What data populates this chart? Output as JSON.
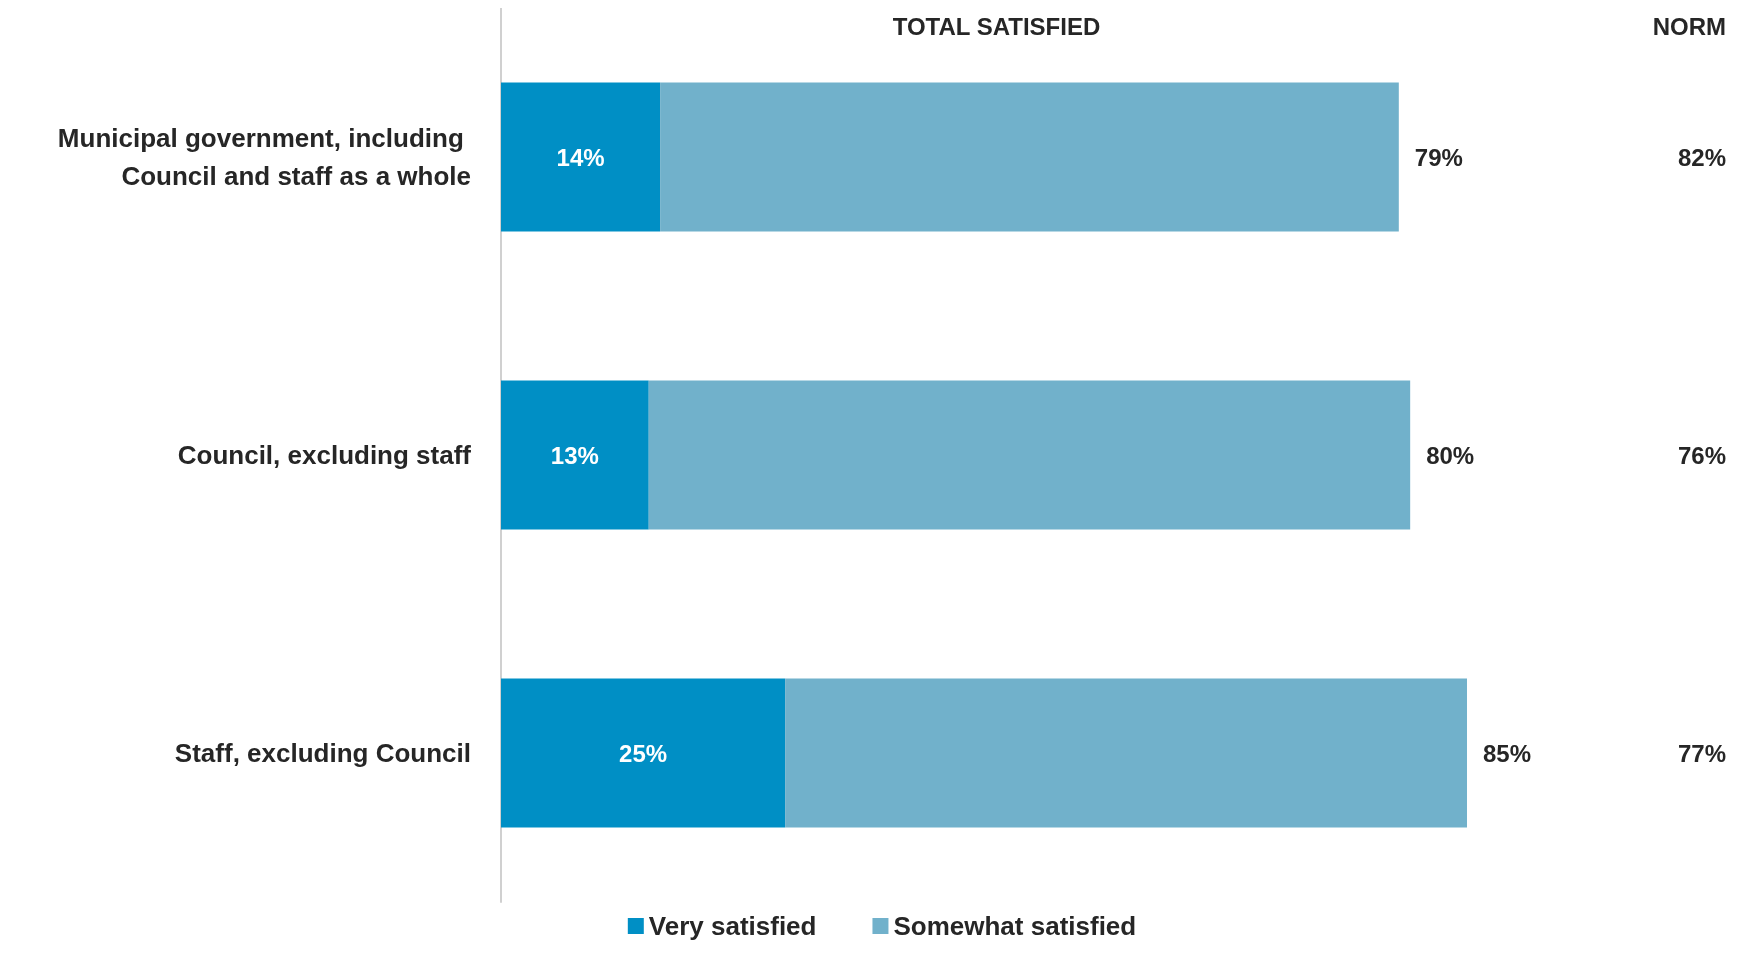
{
  "chart_data": {
    "type": "bar",
    "orientation": "horizontal",
    "stacked": true,
    "categories": [
      "Municipal government, including Council and staff as a whole",
      "Council, excluding staff",
      "Staff, excluding Council"
    ],
    "series": [
      {
        "name": "Very satisfied",
        "color": "#008fc5",
        "values": [
          14,
          13,
          25
        ],
        "value_labels": [
          "14%",
          "13%",
          "25%"
        ]
      },
      {
        "name": "Somewhat satisfied",
        "color": "#71b1cb",
        "values": [
          65,
          67,
          60
        ]
      }
    ],
    "totals": [
      "79%",
      "80%",
      "85%"
    ],
    "tick_labels": "y",
    "legend": "bottom",
    "annotations": [
      "TOTAL SATISFIED",
      "NORM",
      "82%",
      "76%",
      "77%"
    ]
  }
}
